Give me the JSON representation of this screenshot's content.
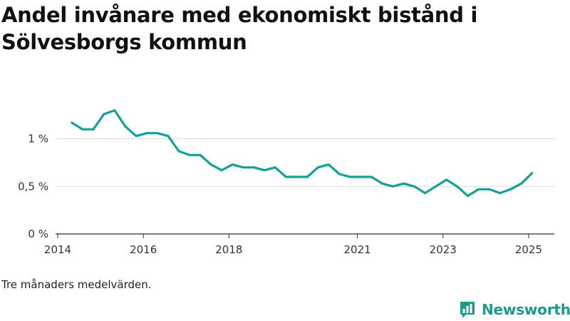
{
  "header": {
    "title": "Andel invånare med ekonomiskt bistånd i Sölvesborgs kommun"
  },
  "footnote": "Tre månaders medelvärden.",
  "brand": {
    "name": "Newsworthy",
    "icon": "newsworthy-logo-icon",
    "color": "#1c9a8a"
  },
  "colors": {
    "line": "#14a195",
    "grid": "#d9d9d9",
    "axis": "#333333"
  },
  "chart_data": {
    "type": "line",
    "title": "Andel invånare med ekonomiskt bistånd i Sölvesborgs kommun",
    "xlabel": "",
    "ylabel": "",
    "x_ticks": [
      {
        "value": 2014.0,
        "label": "2014"
      },
      {
        "value": 2016.0,
        "label": "2016"
      },
      {
        "value": 2018.0,
        "label": "2018"
      },
      {
        "value": 2021.0,
        "label": "2021"
      },
      {
        "value": 2023.0,
        "label": "2023"
      },
      {
        "value": 2025.0,
        "label": "2025"
      }
    ],
    "y_ticks": [
      {
        "value": 0,
        "label": "0 %"
      },
      {
        "value": 0.5,
        "label": "0,5 %"
      },
      {
        "value": 1.0,
        "label": "1 %"
      }
    ],
    "xlim": [
      2013.95,
      2025.6
    ],
    "ylim": [
      0,
      1.5
    ],
    "grid": true,
    "series": [
      {
        "values": [
          [
            2014.33,
            1.17
          ],
          [
            2014.58,
            1.1
          ],
          [
            2014.83,
            1.1
          ],
          [
            2015.08,
            1.26
          ],
          [
            2015.33,
            1.3
          ],
          [
            2015.58,
            1.13
          ],
          [
            2015.83,
            1.03
          ],
          [
            2016.08,
            1.06
          ],
          [
            2016.33,
            1.06
          ],
          [
            2016.58,
            1.03
          ],
          [
            2016.83,
            0.87
          ],
          [
            2017.08,
            0.83
          ],
          [
            2017.33,
            0.83
          ],
          [
            2017.58,
            0.73
          ],
          [
            2017.83,
            0.67
          ],
          [
            2018.08,
            0.73
          ],
          [
            2018.33,
            0.7
          ],
          [
            2018.58,
            0.7
          ],
          [
            2018.83,
            0.67
          ],
          [
            2019.08,
            0.7
          ],
          [
            2019.33,
            0.6
          ],
          [
            2019.58,
            0.6
          ],
          [
            2019.83,
            0.6
          ],
          [
            2020.08,
            0.7
          ],
          [
            2020.33,
            0.73
          ],
          [
            2020.58,
            0.63
          ],
          [
            2020.83,
            0.6
          ],
          [
            2021.08,
            0.6
          ],
          [
            2021.33,
            0.6
          ],
          [
            2021.58,
            0.53
          ],
          [
            2021.83,
            0.5
          ],
          [
            2022.08,
            0.53
          ],
          [
            2022.33,
            0.5
          ],
          [
            2022.58,
            0.43
          ],
          [
            2022.83,
            0.5
          ],
          [
            2023.08,
            0.57
          ],
          [
            2023.33,
            0.5
          ],
          [
            2023.58,
            0.4
          ],
          [
            2023.83,
            0.47
          ],
          [
            2024.08,
            0.47
          ],
          [
            2024.33,
            0.43
          ],
          [
            2024.58,
            0.47
          ],
          [
            2024.83,
            0.53
          ],
          [
            2025.08,
            0.64
          ]
        ]
      }
    ]
  }
}
